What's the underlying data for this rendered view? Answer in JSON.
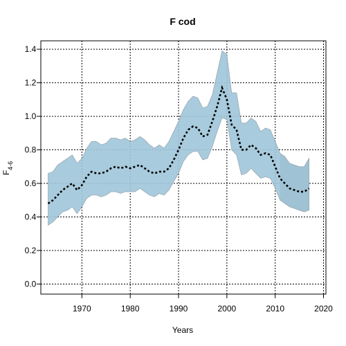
{
  "chart_data": {
    "type": "line",
    "title": "F cod",
    "xlabel": "Years",
    "ylabel_main": "F",
    "ylabel_sub": "4-6",
    "xlim": [
      1961.5,
      2020.5
    ],
    "ylim": [
      -0.06,
      1.45
    ],
    "xticks": [
      1970,
      1980,
      1990,
      2000,
      2010,
      2020
    ],
    "yticks": [
      0.0,
      0.2,
      0.4,
      0.6,
      0.8,
      1.0,
      1.2,
      1.4
    ],
    "ytick_labels": [
      "0.0",
      "0.2",
      "0.4",
      "0.6",
      "0.8",
      "1.0",
      "1.2",
      "1.4"
    ],
    "grid": true,
    "colors": {
      "band": "#9ec5d9",
      "band_tail": "#a6a6a6",
      "band_edge": "#8f9aa0",
      "line": "#000000",
      "grid": "#000000"
    },
    "series": [
      {
        "x": [
          1963,
          1964,
          1965,
          1966,
          1967,
          1968,
          1969,
          1970,
          1971,
          1972,
          1973,
          1974,
          1975,
          1976,
          1977,
          1978,
          1979,
          1980,
          1981,
          1982,
          1983,
          1984,
          1985,
          1986,
          1987,
          1988,
          1989,
          1990,
          1991,
          1992,
          1993,
          1994,
          1995,
          1996,
          1997,
          1998,
          1999,
          2000,
          2001,
          2002,
          2003,
          2004,
          2005,
          2006,
          2007,
          2008,
          2009,
          2010,
          2011,
          2012,
          2013,
          2014,
          2015,
          2016,
          2017
        ],
        "estimate": [
          0.48,
          0.5,
          0.53,
          0.56,
          0.58,
          0.6,
          0.56,
          0.59,
          0.64,
          0.67,
          0.66,
          0.66,
          0.67,
          0.69,
          0.7,
          0.69,
          0.7,
          0.69,
          0.7,
          0.71,
          0.69,
          0.67,
          0.66,
          0.67,
          0.67,
          0.69,
          0.74,
          0.8,
          0.87,
          0.92,
          0.94,
          0.93,
          0.88,
          0.89,
          0.97,
          1.06,
          1.17,
          1.1,
          0.95,
          0.92,
          0.8,
          0.8,
          0.83,
          0.81,
          0.77,
          0.78,
          0.77,
          0.7,
          0.63,
          0.6,
          0.57,
          0.56,
          0.55,
          0.55,
          0.57
        ],
        "lower": [
          0.35,
          0.37,
          0.4,
          0.43,
          0.44,
          0.46,
          0.42,
          0.46,
          0.51,
          0.53,
          0.53,
          0.52,
          0.53,
          0.55,
          0.55,
          0.54,
          0.55,
          0.55,
          0.55,
          0.57,
          0.55,
          0.53,
          0.52,
          0.54,
          0.53,
          0.56,
          0.61,
          0.66,
          0.73,
          0.77,
          0.79,
          0.79,
          0.74,
          0.75,
          0.82,
          0.91,
          0.99,
          0.98,
          0.8,
          0.77,
          0.65,
          0.66,
          0.69,
          0.66,
          0.63,
          0.64,
          0.63,
          0.57,
          0.5,
          0.48,
          0.46,
          0.45,
          0.44,
          0.43,
          0.44
        ],
        "upper": [
          0.66,
          0.67,
          0.71,
          0.73,
          0.75,
          0.77,
          0.72,
          0.75,
          0.81,
          0.85,
          0.85,
          0.83,
          0.84,
          0.87,
          0.87,
          0.86,
          0.87,
          0.85,
          0.86,
          0.88,
          0.86,
          0.83,
          0.81,
          0.83,
          0.81,
          0.85,
          0.91,
          0.97,
          1.04,
          1.09,
          1.12,
          1.11,
          1.05,
          1.06,
          1.13,
          1.26,
          1.39,
          1.37,
          1.14,
          1.14,
          0.96,
          0.96,
          0.99,
          0.97,
          0.91,
          0.93,
          0.92,
          0.85,
          0.78,
          0.76,
          0.72,
          0.71,
          0.7,
          0.7,
          0.75
        ]
      }
    ]
  }
}
